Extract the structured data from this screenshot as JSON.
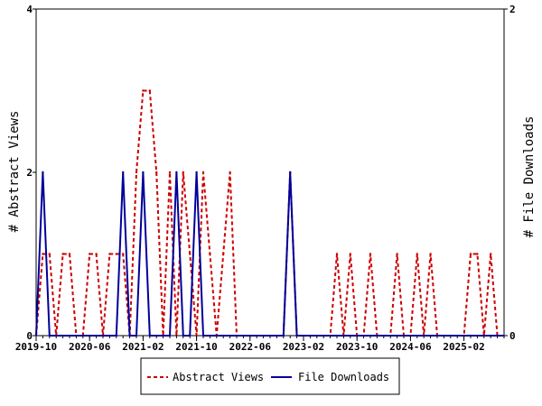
{
  "chart_data": {
    "type": "line",
    "ylabel_left": "# Abstract Views",
    "ylabel_right": "# File Downloads",
    "ylim_left": [
      0,
      4
    ],
    "ylim_right": [
      0,
      2
    ],
    "yticks_left": [
      "0",
      "2",
      "4"
    ],
    "yticks_right": [
      "0",
      "1",
      "2"
    ],
    "xticks": [
      "2019-10",
      "2020-06",
      "2021-02",
      "2021-10",
      "2022-06",
      "2023-02",
      "2023-10",
      "2024-06",
      "2025-02"
    ],
    "x": [
      "2019-10",
      "2019-11",
      "2019-12",
      "2020-01",
      "2020-02",
      "2020-03",
      "2020-04",
      "2020-05",
      "2020-06",
      "2020-07",
      "2020-08",
      "2020-09",
      "2020-10",
      "2020-11",
      "2020-12",
      "2021-01",
      "2021-02",
      "2021-03",
      "2021-04",
      "2021-05",
      "2021-06",
      "2021-07",
      "2021-08",
      "2021-09",
      "2021-10",
      "2021-11",
      "2021-12",
      "2022-01",
      "2022-02",
      "2022-03",
      "2022-04",
      "2022-05",
      "2022-06",
      "2022-07",
      "2022-08",
      "2022-09",
      "2022-10",
      "2022-11",
      "2022-12",
      "2023-01",
      "2023-02",
      "2023-03",
      "2023-04",
      "2023-05",
      "2023-06",
      "2023-07",
      "2023-08",
      "2023-09",
      "2023-10",
      "2023-11",
      "2023-12",
      "2024-01",
      "2024-02",
      "2024-03",
      "2024-04",
      "2024-05",
      "2024-06",
      "2024-07",
      "2024-08",
      "2024-09",
      "2024-10",
      "2024-11",
      "2024-12",
      "2025-01",
      "2025-02",
      "2025-03",
      "2025-04",
      "2025-05",
      "2025-06",
      "2025-07",
      "2025-08"
    ],
    "series": [
      {
        "name": "Abstract Views",
        "axis": "left",
        "color": "#cc0000",
        "style": "dashed",
        "values": [
          0,
          1,
          1,
          0,
          1,
          1,
          0,
          0,
          1,
          1,
          0,
          1,
          1,
          1,
          0,
          2,
          3,
          3,
          2,
          0,
          2,
          0,
          2,
          1,
          0,
          2,
          1,
          0,
          1,
          2,
          0,
          0,
          0,
          0,
          0,
          0,
          0,
          0,
          2,
          0,
          0,
          0,
          0,
          0,
          0,
          1,
          0,
          1,
          0,
          0,
          1,
          0,
          0,
          0,
          1,
          0,
          0,
          1,
          0,
          1,
          0,
          0,
          0,
          0,
          0,
          1,
          1,
          0,
          1,
          0,
          0
        ]
      },
      {
        "name": "File Downloads",
        "axis": "right",
        "color": "#000099",
        "style": "solid",
        "values": [
          0,
          1,
          0,
          0,
          0,
          0,
          0,
          0,
          0,
          0,
          0,
          0,
          0,
          1,
          0,
          0,
          1,
          0,
          0,
          0,
          0,
          1,
          0,
          0,
          1,
          0,
          0,
          0,
          0,
          0,
          0,
          0,
          0,
          0,
          0,
          0,
          0,
          0,
          1,
          0,
          0,
          0,
          0,
          0,
          0,
          0,
          0,
          0,
          0,
          0,
          0,
          0,
          0,
          0,
          0,
          0,
          0,
          0,
          0,
          0,
          0,
          0,
          0,
          0,
          0,
          0,
          0,
          0,
          0,
          0,
          0
        ]
      }
    ],
    "legend": {
      "placement": "bottom-center"
    }
  },
  "colors": {
    "views": "#cc0000",
    "downloads": "#000099",
    "axis": "#000000"
  }
}
